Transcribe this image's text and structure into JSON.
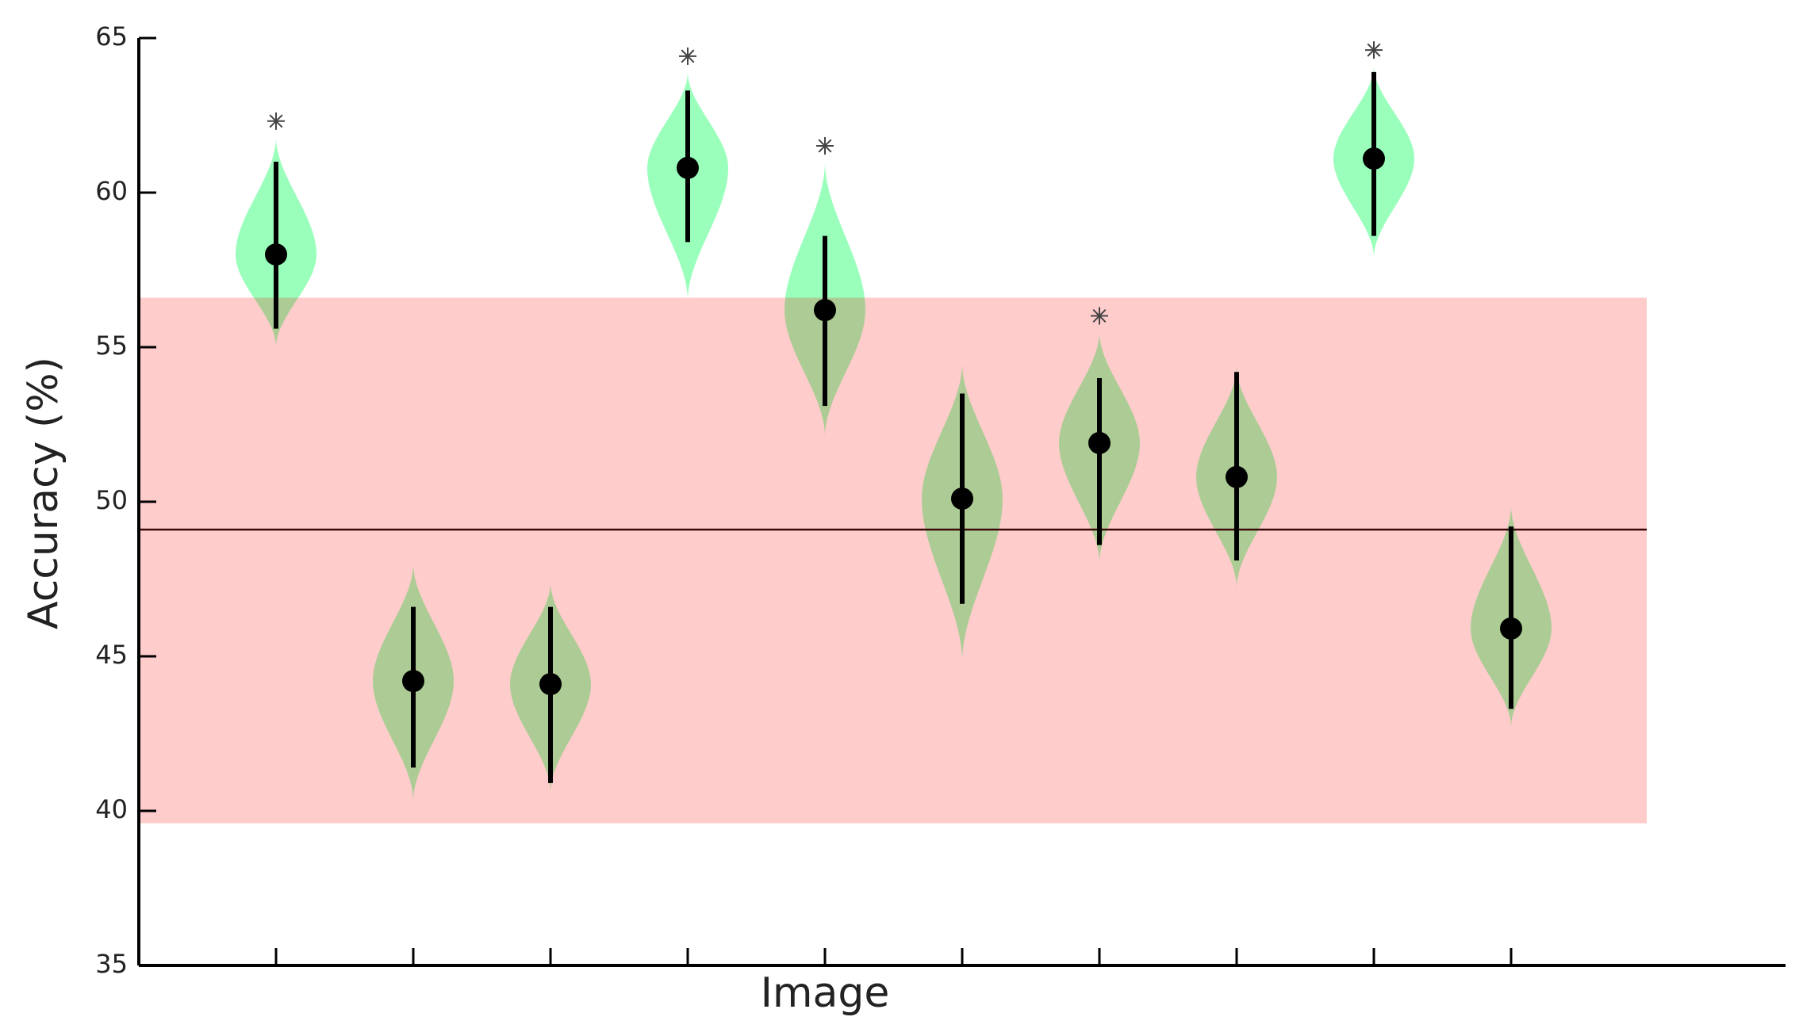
{
  "chart_data": {
    "type": "violin",
    "x_label": "Image",
    "y_label": "Accuracy (%)",
    "categories": [
      null,
      null,
      null,
      null,
      null,
      null,
      null,
      null,
      null,
      null
    ],
    "means": [
      58.0,
      44.2,
      44.1,
      60.8,
      56.2,
      50.1,
      51.9,
      50.8,
      61.1,
      45.9
    ],
    "whisker_low": [
      55.6,
      41.4,
      40.9,
      58.4,
      53.1,
      46.7,
      48.6,
      48.1,
      58.6,
      43.3
    ],
    "whisker_high": [
      61.0,
      46.6,
      46.6,
      63.3,
      58.6,
      53.5,
      54.0,
      54.2,
      63.9,
      49.2
    ],
    "violin_low": [
      55.0,
      40.3,
      40.6,
      56.5,
      52.1,
      44.8,
      48.0,
      47.2,
      57.9,
      42.7
    ],
    "violin_high": [
      61.8,
      48.0,
      47.4,
      63.9,
      61.0,
      54.5,
      55.5,
      54.4,
      64.1,
      49.9
    ],
    "significant": [
      true,
      false,
      false,
      true,
      true,
      false,
      true,
      false,
      true,
      false
    ],
    "chance_band": [
      39.6,
      56.6
    ],
    "chance_line": 49.1,
    "violin_color": "#99ffbb",
    "band_color": "rgba(255,0,0,0.2)",
    "ylim": [
      35,
      65
    ],
    "yticks": [
      35,
      40,
      45,
      50,
      55,
      60,
      65
    ]
  }
}
